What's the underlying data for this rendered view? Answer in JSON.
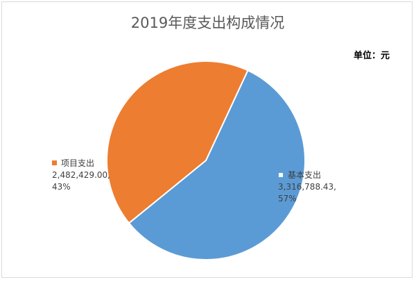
{
  "chart_data": {
    "type": "pie",
    "title": "2019年度支出构成情况",
    "unit_label": "单位：元",
    "slices": [
      {
        "name": "基本支出",
        "value": 3316788.43,
        "value_label": "3,316,788.43,",
        "percent_label": "57%",
        "color": "#5b9bd5"
      },
      {
        "name": "项目支出",
        "value": 2482429.0,
        "value_label": "2,482,429.00,",
        "percent_label": "43%",
        "color": "#ed7d31"
      }
    ],
    "start_angle_deg": 25,
    "legend": "none"
  }
}
